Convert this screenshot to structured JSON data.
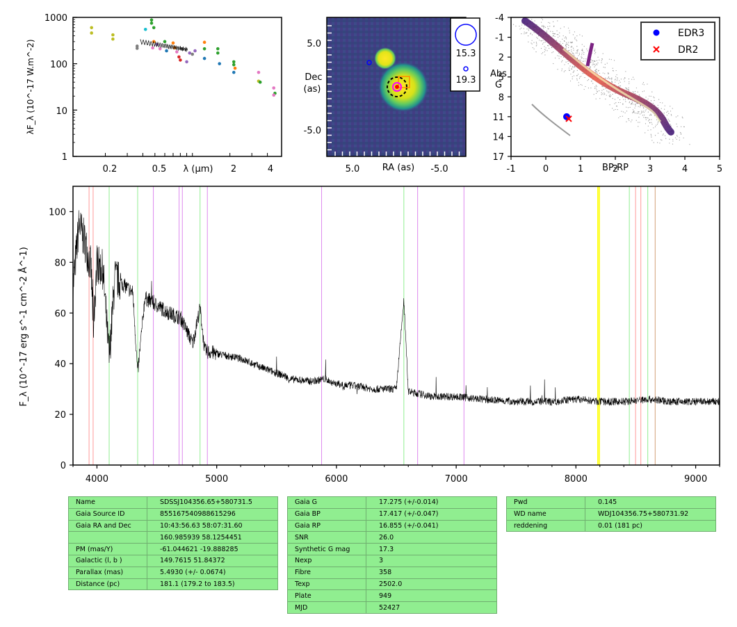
{
  "sed": {
    "ylabel": "λF_λ (10^-17 W.m^-2)",
    "xlabel": "λ (μm)",
    "yticks": [
      "1000",
      "100",
      "10",
      "1"
    ],
    "xticks": [
      "0.2",
      "0.5",
      "2",
      "4"
    ],
    "xrange_um": [
      0.11,
      5.2
    ],
    "yrange": [
      1,
      1000
    ]
  },
  "image": {
    "ylabel_line1": "Dec",
    "ylabel_line2": "(as)",
    "xlabel": "RA (as)",
    "yticks": [
      "5.0",
      "-5.0"
    ],
    "xticks": [
      "5.0",
      "-5.0"
    ],
    "legend": [
      "15.3",
      "19.3"
    ]
  },
  "hrd": {
    "xlabel": "BP-RP",
    "ylabel_line1": "Abs",
    "ylabel_line2": "G",
    "xticks": [
      "-1",
      "0",
      "1",
      "2",
      "3",
      "4",
      "5"
    ],
    "yticks": [
      "-4",
      "-1",
      "2",
      "5",
      "8",
      "11",
      "14",
      "17"
    ],
    "xrange": [
      -1,
      5
    ],
    "yrange": [
      -4,
      17
    ],
    "legend": [
      {
        "label": "EDR3",
        "color": "#0000ff",
        "marker": "circle"
      },
      {
        "label": "DR2",
        "color": "#ff0000",
        "marker": "x"
      }
    ],
    "target": {
      "bp_rp": 0.6,
      "abs_g": 11.0
    }
  },
  "chart_data": {
    "type": "line",
    "ylabel": "F_λ (10^-17 erg s^-1 cm^-2 Å^-1)",
    "xlim": [
      3800,
      9200
    ],
    "ylim": [
      0,
      110
    ],
    "xticks": [
      "4000",
      "5000",
      "6000",
      "7000",
      "8000",
      "9000"
    ],
    "yticks": [
      "0",
      "20",
      "40",
      "60",
      "80",
      "100"
    ],
    "series": [
      {
        "x": [
          3800,
          3850,
          3900,
          3950,
          3970,
          4000,
          4050,
          4102,
          4150,
          4200,
          4300,
          4340,
          4400,
          4500,
          4600,
          4700,
          4800,
          4861,
          4900,
          5000,
          5200,
          5400,
          5577,
          5600,
          5800,
          5900,
          6000,
          6200,
          6300,
          6400,
          6500,
          6563,
          6600,
          6700,
          6800,
          7000,
          7200,
          7500,
          7800,
          8000,
          8200,
          8400,
          8600,
          8800,
          9000,
          9200
        ],
        "y": [
          70,
          95,
          88,
          78,
          55,
          80,
          77,
          42,
          74,
          72,
          68,
          36,
          66,
          63,
          60,
          58,
          48,
          62,
          45,
          44,
          42,
          38,
          35,
          34,
          33,
          34,
          32,
          31,
          30,
          30,
          30,
          65,
          29,
          28,
          27,
          27,
          26,
          25,
          25,
          26,
          25,
          25,
          26,
          25,
          25,
          25
        ]
      }
    ],
    "lines": {
      "red": [
        3934,
        3968,
        8498,
        8542,
        8662
      ],
      "green": [
        4102,
        4340,
        4861,
        6563,
        8446,
        8600
      ],
      "violet": [
        4471,
        4686,
        4713,
        4922,
        5876,
        6678,
        7065
      ],
      "yellow": [
        8183,
        8195
      ],
      "tan": [
        8662
      ]
    }
  },
  "table1": [
    {
      "k": "Name",
      "v": "SDSSJ104356.65+580731.5"
    },
    {
      "k": "Gaia Source ID",
      "v": "855167540988615296"
    },
    {
      "k": "Gaia RA and Dec",
      "v": "10:43:56.63    58:07:31.60"
    },
    {
      "k": "",
      "v": "160.985939    58.1254451"
    },
    {
      "k": "PM (mas/Y)",
      "v": "-61.044621    -19.888285"
    },
    {
      "k": "Galactic (l, b )",
      "v": "149.7615    51.84372"
    },
    {
      "k": "Parallax (mas)",
      "v": "5.4930 (+/- 0.0674)"
    },
    {
      "k": "Distance (pc)",
      "v": "181.1 (179.2 to 183.5)"
    }
  ],
  "table2": [
    {
      "k": "Gaia G",
      "v": "17.275 (+/-0.014)"
    },
    {
      "k": "Gaia BP",
      "v": "17.417 (+/-0.047)"
    },
    {
      "k": "Gaia RP",
      "v": "16.855 (+/-0.041)"
    },
    {
      "k": "SNR",
      "v": "26.0"
    },
    {
      "k": "Synthetic G mag",
      "v": "17.3"
    },
    {
      "k": "Nexp",
      "v": "3"
    },
    {
      "k": "Fibre",
      "v": "358"
    },
    {
      "k": "Texp",
      "v": "2502.0"
    },
    {
      "k": "Plate",
      "v": "949"
    },
    {
      "k": "MJD",
      "v": "52427"
    }
  ],
  "table3": [
    {
      "k": "Pwd",
      "v": "0.145"
    },
    {
      "k": "WD name",
      "v": "WDJ104356.75+580731.92"
    },
    {
      "k": "reddening",
      "v": "0.01 (181 pc)"
    }
  ]
}
